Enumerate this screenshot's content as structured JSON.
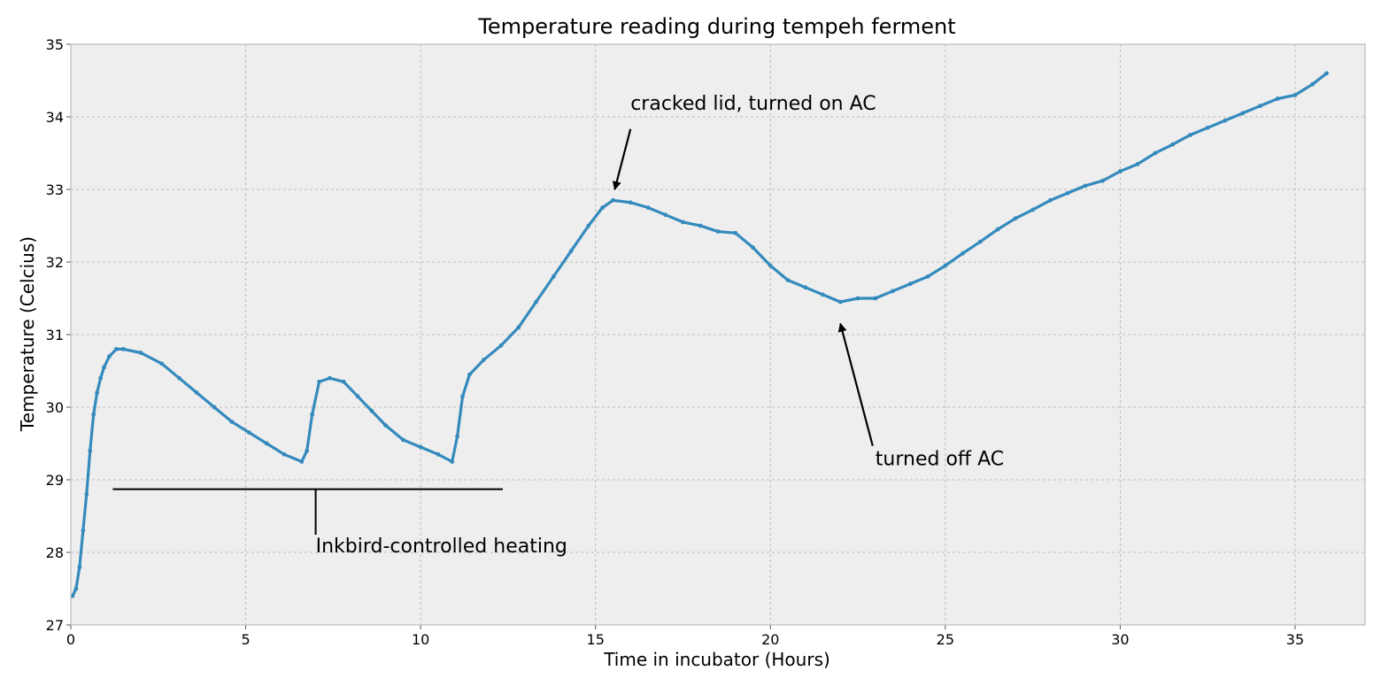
{
  "chart_data": {
    "type": "line",
    "title": "Temperature reading during tempeh ferment",
    "xlabel": "Time in incubator (Hours)",
    "ylabel": "Temperature (Celcius)",
    "xlim": [
      0,
      37
    ],
    "ylim": [
      27,
      35
    ],
    "xticks": [
      0,
      5,
      10,
      15,
      20,
      25,
      30,
      35
    ],
    "yticks": [
      27,
      28,
      29,
      30,
      31,
      32,
      33,
      34,
      35
    ],
    "grid": true,
    "colors": {
      "line": "#348abd",
      "background": "#eeeeee",
      "axes_edge": "#bcbcbc"
    },
    "series": [
      {
        "x": [
          0.05,
          0.15,
          0.25,
          0.35,
          0.45,
          0.55,
          0.65,
          0.75,
          0.85,
          0.95,
          1.1,
          1.3,
          1.5,
          2.0,
          2.6,
          3.1,
          3.6,
          4.1,
          4.6,
          5.1,
          5.6,
          6.1,
          6.6,
          6.75,
          6.9,
          7.1,
          7.4,
          7.8,
          8.2,
          8.6,
          9.0,
          9.5,
          10.0,
          10.5,
          10.9,
          11.05,
          11.2,
          11.4,
          11.8,
          12.3,
          12.8,
          13.3,
          13.8,
          14.3,
          14.8,
          15.2,
          15.5,
          16.0,
          16.5,
          17.0,
          17.5,
          18.0,
          18.5,
          19.0,
          19.5,
          20.0,
          20.5,
          21.0,
          21.5,
          22.0,
          22.5,
          23.0,
          23.5,
          24.0,
          24.5,
          25.0,
          25.5,
          26.0,
          26.5,
          27.0,
          27.5,
          28.0,
          28.5,
          29.0,
          29.5,
          30.0,
          30.5,
          31.0,
          31.5,
          32.0,
          32.5,
          33.0,
          33.5,
          34.0,
          34.5,
          35.0,
          35.5,
          35.9
        ],
        "y": [
          27.4,
          27.5,
          27.8,
          28.3,
          28.8,
          29.4,
          29.9,
          30.2,
          30.4,
          30.55,
          30.7,
          30.8,
          30.8,
          30.75,
          30.6,
          30.4,
          30.2,
          30.0,
          29.8,
          29.65,
          29.5,
          29.35,
          29.25,
          29.4,
          29.9,
          30.35,
          30.4,
          30.35,
          30.15,
          29.95,
          29.75,
          29.55,
          29.45,
          29.35,
          29.25,
          29.6,
          30.15,
          30.45,
          30.65,
          30.85,
          31.1,
          31.45,
          31.8,
          32.15,
          32.5,
          32.75,
          32.85,
          32.82,
          32.75,
          32.65,
          32.55,
          32.5,
          32.42,
          32.4,
          32.2,
          31.95,
          31.75,
          31.65,
          31.55,
          31.45,
          31.5,
          31.5,
          31.6,
          31.7,
          31.8,
          31.95,
          32.12,
          32.28,
          32.45,
          32.6,
          32.72,
          32.85,
          32.95,
          33.05,
          33.12,
          33.25,
          33.35,
          33.5,
          33.62,
          33.75,
          33.85,
          33.95,
          34.05,
          34.15,
          34.25,
          34.3,
          34.45,
          34.6
        ]
      }
    ],
    "annotations": [
      {
        "text": "cracked lid, turned on AC",
        "text_x": 16.0,
        "text_y": 34.1,
        "point_x": 15.55,
        "point_y": 33.0
      },
      {
        "text": "turned off AC",
        "text_x": 23.0,
        "text_y": 29.2,
        "point_x": 22.0,
        "point_y": 31.15
      },
      {
        "text": "Inkbird-controlled heating",
        "text_x": 7.0,
        "text_y": 28.0,
        "bracket_x_start": 1.2,
        "bracket_x_end": 12.35,
        "bracket_y": 28.87
      }
    ]
  }
}
